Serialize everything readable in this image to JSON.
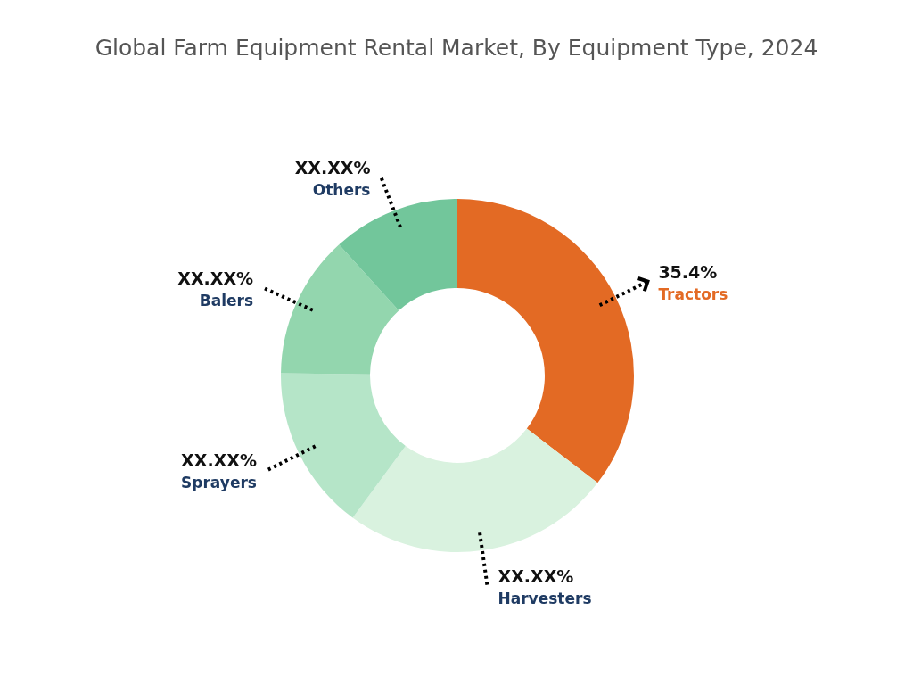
{
  "chart_data": {
    "type": "donut",
    "title": "Global Farm Equipment Rental Market, By Equipment Type, 2024",
    "categories": [
      "Tractors",
      "Harvesters",
      "Sprayers",
      "Balers",
      "Others"
    ],
    "values": [
      35.4,
      24.7,
      15.1,
      13.1,
      11.7
    ],
    "colors": [
      "#e36a24",
      "#d9f2df",
      "#b5e5c8",
      "#93d6ae",
      "#72c69b"
    ],
    "value_labels": [
      "35.4%",
      "XX.XX%",
      "XX.XX%",
      "XX.XX%",
      "XX.XX%"
    ],
    "legend": false
  }
}
